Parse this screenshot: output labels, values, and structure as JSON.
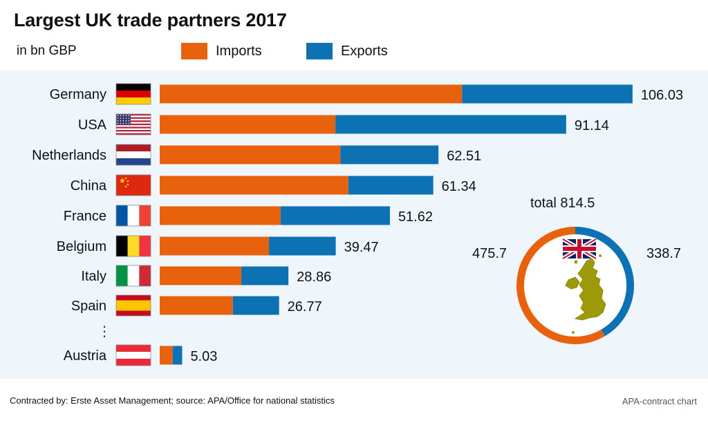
{
  "title": "Largest UK trade partners 2017",
  "unit_label": "in bn GBP",
  "legend": [
    {
      "label": "Imports",
      "color": "#e8610c"
    },
    {
      "label": "Exports",
      "color": "#0c72b4"
    }
  ],
  "chart_data": [
    {
      "type": "bar",
      "orientation": "horizontal",
      "stacked": true,
      "title": "Largest UK trade partners 2017",
      "subtitle": "in bn GBP",
      "categories": [
        "Germany",
        "USA",
        "Netherlands",
        "China",
        "France",
        "Belgium",
        "Italy",
        "Spain",
        "Austria"
      ],
      "series": [
        {
          "name": "Imports",
          "color": "#e8610c",
          "values": [
            67.8,
            39.4,
            40.5,
            42.3,
            27.1,
            24.5,
            18.3,
            16.4,
            2.9
          ]
        },
        {
          "name": "Exports",
          "color": "#0c72b4",
          "values": [
            38.23,
            51.74,
            22.01,
            19.04,
            24.52,
            14.97,
            10.56,
            10.37,
            2.13
          ]
        }
      ],
      "totals": [
        "106.03",
        "91.14",
        "62.51",
        "61.34",
        "51.62",
        "39.47",
        "28.86",
        "26.77",
        "5.03"
      ],
      "flags": [
        "germany-flag",
        "usa-flag",
        "netherlands-flag",
        "china-flag",
        "france-flag",
        "belgium-flag",
        "italy-flag",
        "spain-flag",
        "austria-flag"
      ],
      "ellipsis": "⋮"
    },
    {
      "type": "pie",
      "style": "donut",
      "title": "total 814.5",
      "values": [
        475.7,
        338.7
      ],
      "labels": [
        "475.7",
        "338.7"
      ],
      "series_names": [
        "Imports",
        "Exports"
      ],
      "colors": [
        "#e8610c",
        "#0c72b4"
      ],
      "icons": [
        "uk-flag-icon",
        "uk-map-icon"
      ]
    }
  ],
  "footer": {
    "source": "Contracted by: Erste Asset Management; source: APA/Office for national statistics",
    "credit": "APA-contract chart"
  }
}
